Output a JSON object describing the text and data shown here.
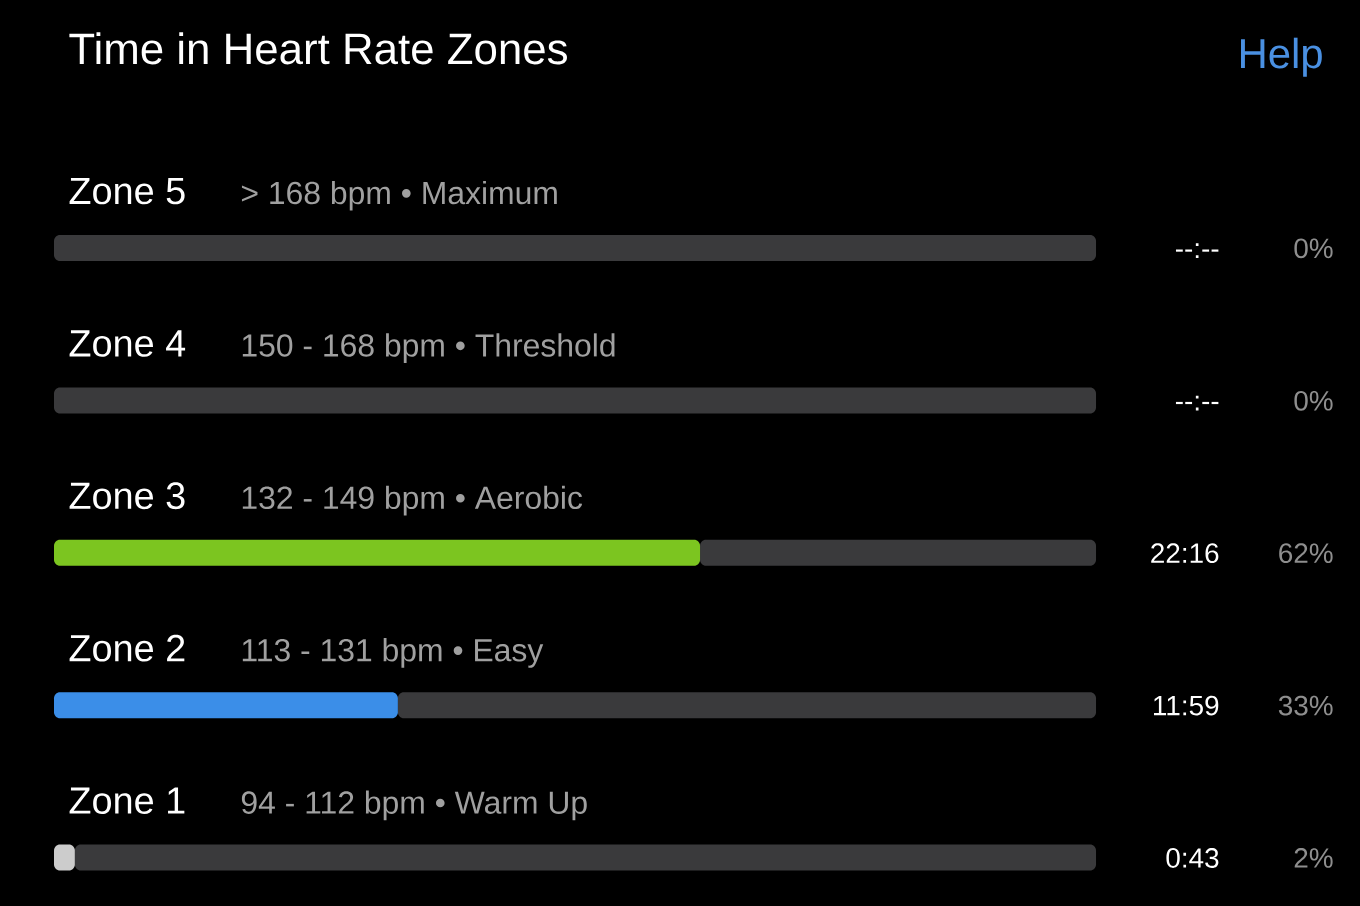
{
  "chart_data": {
    "type": "bar",
    "orientation": "horizontal",
    "stacked": true,
    "title": "Time in Heart Rate Zones",
    "categories": [
      "Zone 5",
      "Zone 4",
      "Zone 3",
      "Zone 2",
      "Zone 1"
    ],
    "series": [
      {
        "colors": [
          "#3a3a3c",
          "#3a3a3c",
          "#7cc520",
          "#3b8ee8",
          "#cccccc"
        ],
        "values": [
          0,
          0,
          62,
          33,
          2
        ],
        "value_labels": [
          "0%",
          "0%",
          "62%",
          "33%",
          "2%"
        ]
      },
      {
        "color": "#3a3a3c",
        "values": [
          100,
          100,
          38,
          67,
          98
        ]
      }
    ],
    "annotations": [
      "> 168 bpm • Maximum",
      "150 - 168 bpm • Threshold",
      "132 - 149 bpm • Aerobic",
      "113 - 131 bpm • Easy",
      "94 - 112 bpm • Warm Up",
      "--:--",
      "--:--",
      "22:16",
      "11:59",
      "0:43",
      "Help"
    ]
  }
}
